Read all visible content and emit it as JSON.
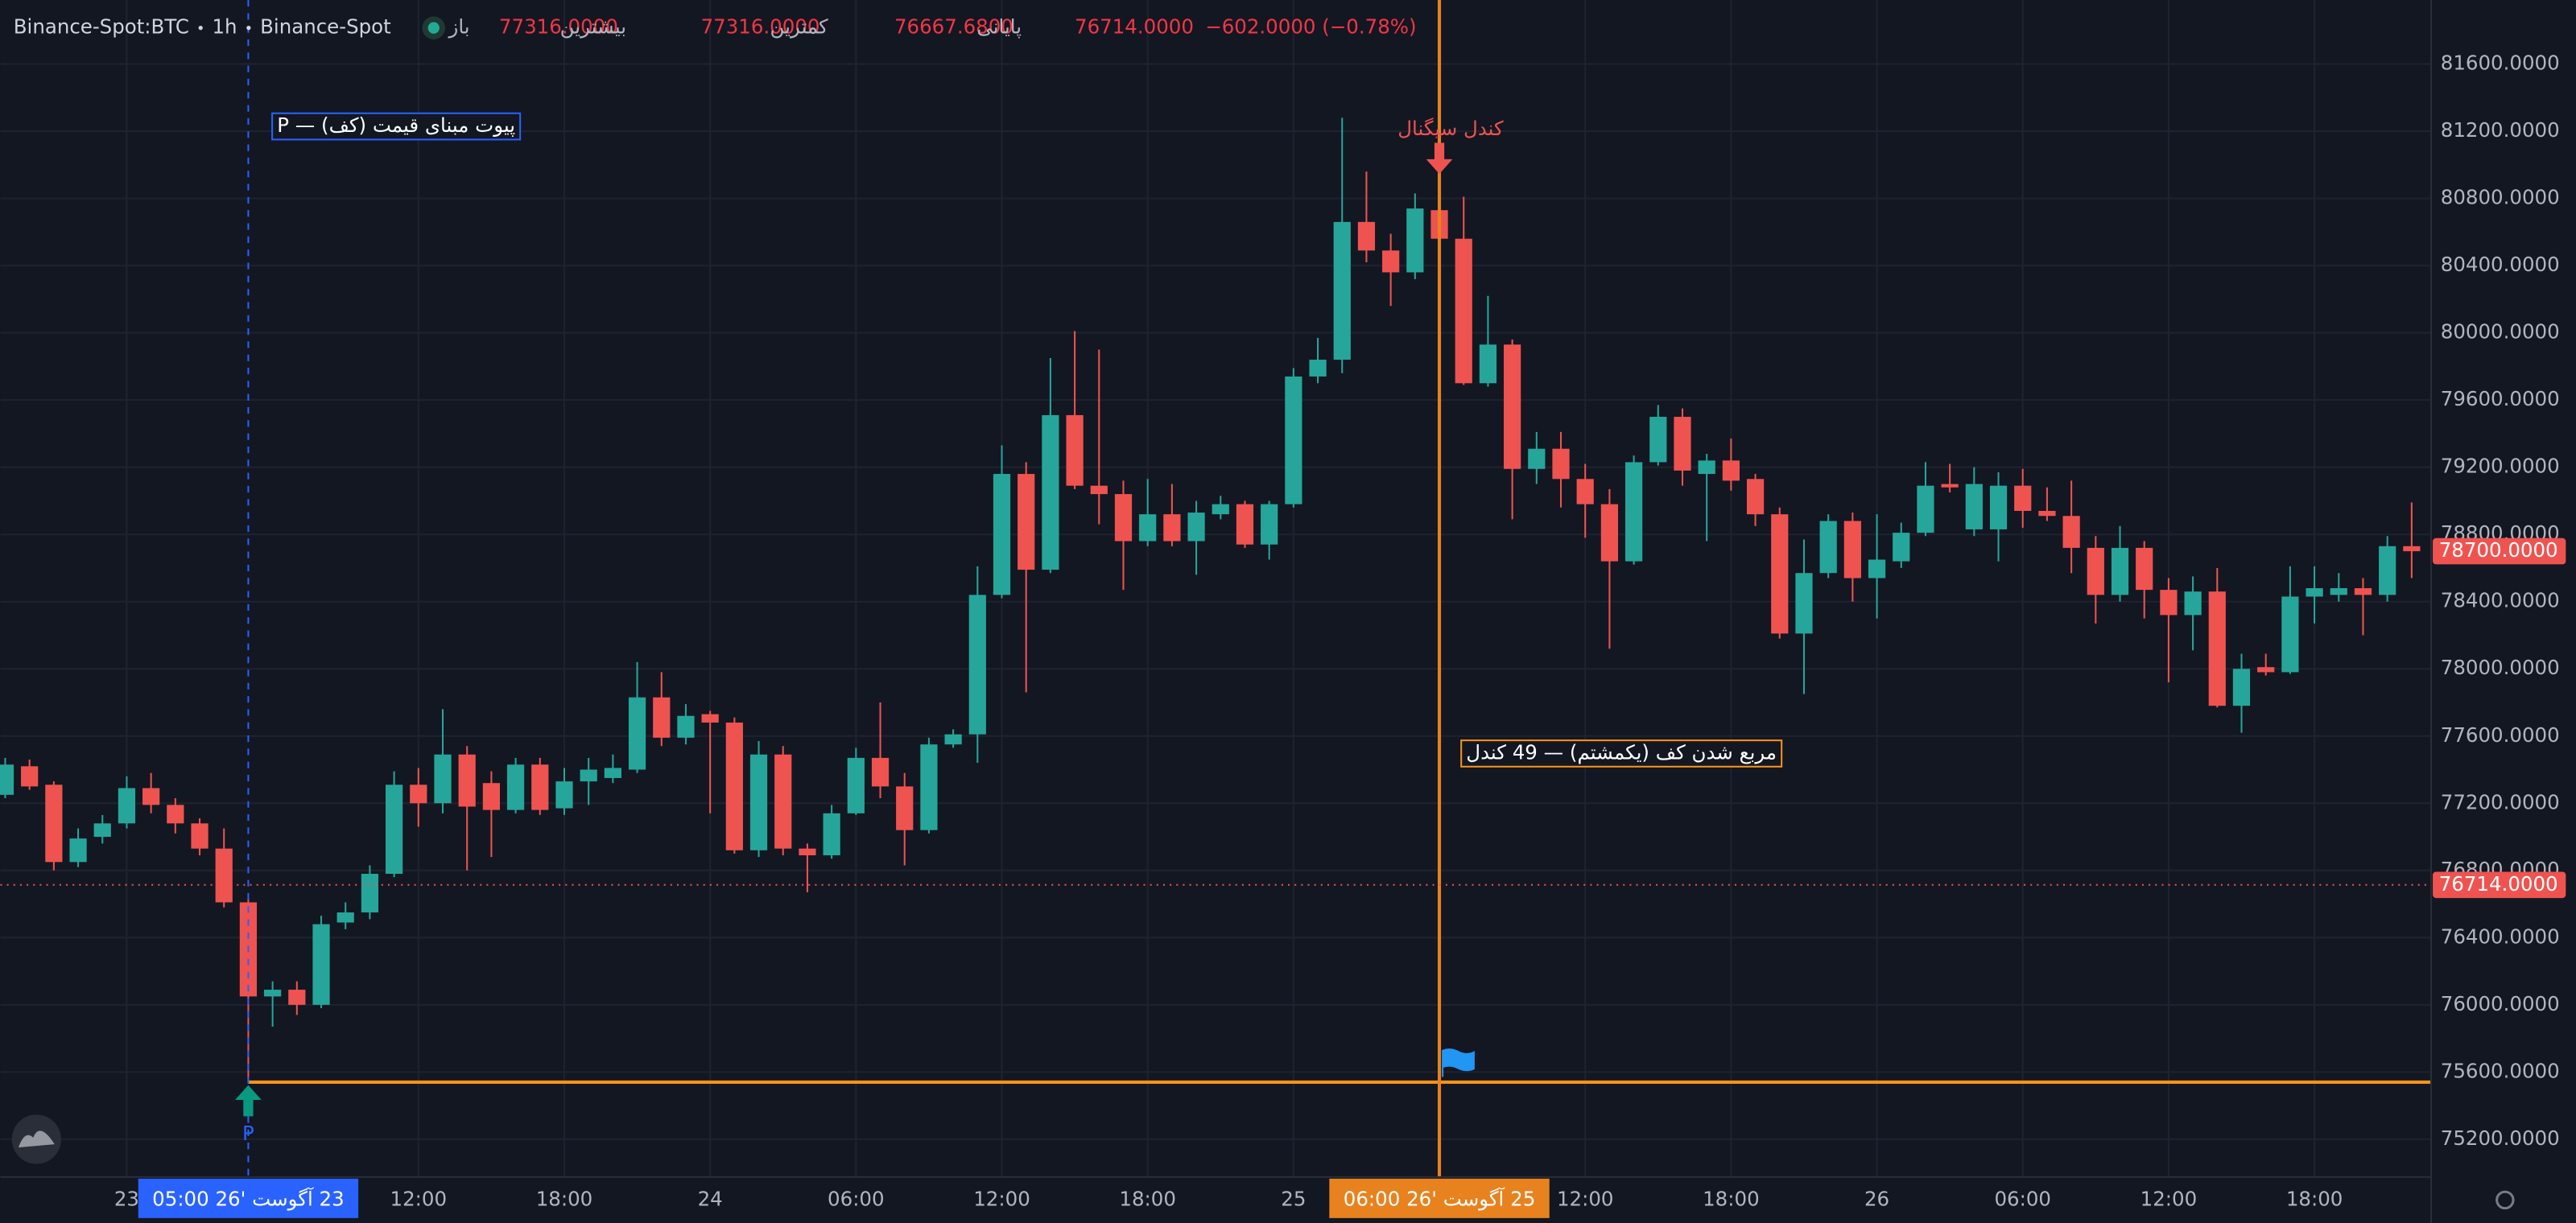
{
  "chart_data": {
    "type": "candlestick",
    "header": {
      "symbol": "Binance-Spot:BTC",
      "interval": "1h",
      "exchange": "Binance-Spot",
      "ohlc": [
        {
          "label": "باز",
          "value": "77316.0000"
        },
        {
          "label": "بیشترین",
          "value": "77316.0000"
        },
        {
          "label": "کمترین",
          "value": "76667.6800"
        },
        {
          "label": "پایانی",
          "value": "76714.0000"
        }
      ],
      "change": "−602.0000 (−0.78%)"
    },
    "categories": [
      null,
      null,
      null,
      null,
      null,
      "23",
      null,
      null,
      null,
      null,
      null,
      null,
      null,
      null,
      null,
      null,
      null,
      "12:00",
      null,
      null,
      null,
      null,
      null,
      "18:00",
      null,
      null,
      null,
      null,
      null,
      "24",
      null,
      null,
      null,
      null,
      null,
      "06:00",
      null,
      null,
      null,
      null,
      null,
      "12:00",
      null,
      null,
      null,
      null,
      null,
      "18:00",
      null,
      null,
      null,
      null,
      null,
      "25",
      null,
      null,
      null,
      null,
      null,
      null,
      null,
      null,
      null,
      null,
      null,
      "12:00",
      null,
      null,
      null,
      null,
      null,
      "18:00",
      null,
      null,
      null,
      null,
      null,
      "26",
      null,
      null,
      null,
      null,
      null,
      "06:00",
      null,
      null,
      null,
      null,
      null,
      "12:00",
      null,
      null,
      null,
      null,
      null,
      "18:00",
      null,
      null,
      null,
      null
    ],
    "open": [
      77250,
      77420,
      77310,
      76850,
      77000,
      77080,
      77290,
      77190,
      77080,
      76930,
      76610,
      76050,
      76090,
      76000,
      76490,
      76550,
      76780,
      77310,
      77200,
      77490,
      77320,
      77160,
      77430,
      77170,
      77330,
      77350,
      77400,
      77830,
      77590,
      77730,
      77680,
      76920,
      77490,
      76930,
      76890,
      77140,
      77470,
      77300,
      77040,
      77550,
      77610,
      78440,
      79160,
      78590,
      79510,
      79090,
      79040,
      78760,
      78920,
      78760,
      78920,
      78980,
      78740,
      78980,
      79740,
      79840,
      80660,
      80490,
      80360,
      80730,
      80560,
      79700,
      79930,
      79190,
      79310,
      79130,
      78980,
      78640,
      79230,
      79500,
      79160,
      79240,
      79130,
      78920,
      78210,
      78570,
      78880,
      78540,
      78640,
      78810,
      79100,
      78830,
      78830,
      79090,
      78940,
      78910,
      78720,
      78440,
      78720,
      78470,
      78320,
      78460,
      77780,
      78010,
      77980,
      78430,
      78440,
      78480,
      78440,
      78730
    ],
    "high": [
      77470,
      77460,
      77330,
      77050,
      77130,
      77360,
      77380,
      77230,
      77110,
      77050,
      76630,
      76140,
      76140,
      76530,
      76610,
      76830,
      77390,
      77410,
      77760,
      77540,
      77390,
      77470,
      77470,
      77410,
      77470,
      77490,
      78040,
      77980,
      77790,
      77750,
      77710,
      77570,
      77540,
      76960,
      77190,
      77530,
      77800,
      77380,
      77590,
      77640,
      78610,
      79330,
      79230,
      79850,
      80010,
      79900,
      79120,
      79130,
      79100,
      79000,
      79030,
      79000,
      79000,
      79790,
      79970,
      81280,
      80960,
      80590,
      80830,
      81000,
      80810,
      80220,
      79960,
      79410,
      79410,
      79220,
      79070,
      79270,
      79570,
      79550,
      79280,
      79370,
      79160,
      78960,
      78770,
      78920,
      78930,
      78920,
      78870,
      79230,
      79220,
      79200,
      79170,
      79190,
      79080,
      79120,
      78790,
      78850,
      78760,
      78540,
      78550,
      78600,
      78090,
      78090,
      78610,
      78610,
      78570,
      78540,
      78790,
      78990
    ],
    "low": [
      77230,
      77280,
      76800,
      76820,
      76960,
      77050,
      77140,
      77020,
      76890,
      76580,
      75540,
      75870,
      75940,
      75980,
      76450,
      76510,
      76760,
      77060,
      77140,
      76800,
      76880,
      77140,
      77130,
      77130,
      77190,
      77320,
      77380,
      77540,
      77550,
      77140,
      76900,
      76880,
      76890,
      76670,
      76870,
      77130,
      77230,
      76830,
      77020,
      77530,
      77440,
      78420,
      77860,
      78570,
      79070,
      78860,
      78470,
      78730,
      78730,
      78560,
      78890,
      78720,
      78650,
      78960,
      79700,
      79760,
      80420,
      80160,
      80320,
      80440,
      79690,
      79680,
      78890,
      79100,
      78960,
      78780,
      78120,
      78620,
      79210,
      79090,
      78760,
      79060,
      78850,
      78180,
      77850,
      78540,
      78400,
      78300,
      78600,
      78790,
      79050,
      78790,
      78640,
      78840,
      78880,
      78570,
      78270,
      78400,
      78300,
      77920,
      78110,
      77770,
      77620,
      77960,
      77970,
      78270,
      78400,
      78200,
      78400,
      78540
    ],
    "close": [
      77430,
      77300,
      76850,
      76990,
      77080,
      77290,
      77190,
      77080,
      76930,
      76610,
      76050,
      76090,
      76000,
      76480,
      76550,
      76780,
      77310,
      77200,
      77490,
      77180,
      77160,
      77430,
      77160,
      77330,
      77400,
      77410,
      77830,
      77590,
      77720,
      77680,
      76920,
      77490,
      76930,
      76890,
      77140,
      77470,
      77300,
      77040,
      77550,
      77610,
      78440,
      79160,
      78590,
      79510,
      79090,
      79040,
      78760,
      78920,
      78760,
      78930,
      78980,
      78740,
      78980,
      79740,
      79840,
      80660,
      80490,
      80360,
      80740,
      80560,
      79700,
      79930,
      79190,
      79310,
      79130,
      78980,
      78640,
      79230,
      79500,
      79180,
      79240,
      79120,
      78920,
      78210,
      78570,
      78880,
      78540,
      78650,
      78810,
      79090,
      79080,
      79100,
      79090,
      78940,
      78910,
      78720,
      78440,
      78720,
      78470,
      78320,
      78460,
      77780,
      78000,
      77980,
      78430,
      78480,
      78480,
      78440,
      78730,
      78700
    ],
    "up_color": "#26a69a",
    "down_color": "#ef5350",
    "ylim": [
      74975,
      81981
    ],
    "yticks": [
      {
        "value": 75200,
        "label": "75200.0000"
      },
      {
        "value": 75600,
        "label": "75600.0000"
      },
      {
        "value": 76000,
        "label": "76000.0000"
      },
      {
        "value": 76400,
        "label": "76400.0000"
      },
      {
        "value": 76800,
        "label": "76800.0000"
      },
      {
        "value": 77200,
        "label": "77200.0000"
      },
      {
        "value": 77600,
        "label": "77600.0000"
      },
      {
        "value": 78000,
        "label": "78000.0000"
      },
      {
        "value": 78400,
        "label": "78400.0000"
      },
      {
        "value": 78800,
        "label": "78800.0000"
      },
      {
        "value": 79200,
        "label": "79200.0000"
      },
      {
        "value": 79600,
        "label": "79600.0000"
      },
      {
        "value": 80000,
        "label": "80000.0000"
      },
      {
        "value": 80400,
        "label": "80400.0000"
      },
      {
        "value": 80800,
        "label": "80800.0000"
      },
      {
        "value": 81200,
        "label": "81200.0000"
      },
      {
        "value": 81600,
        "label": "81600.0000"
      }
    ],
    "grid": true,
    "price_labels": [
      {
        "value": 78700,
        "label": "78700.0000",
        "color": "#ef5350",
        "line": "none"
      },
      {
        "value": 76714,
        "label": "76714.0000",
        "color": "#ef5350",
        "line": "dotted"
      }
    ],
    "level": {
      "value": 75540,
      "color": "#f7931a"
    },
    "time_markers": [
      {
        "label": "23 آگوست '26 05:00",
        "color": "#2962ff"
      },
      {
        "label": "25 آگوست '26 06:00",
        "color": "#e8821e"
      }
    ],
    "annotations": [
      {
        "text": "پیوت مبنای قیمت (کف) — P",
        "color": "#2962ff",
        "boxed": true
      },
      {
        "text": "کندل سیگنال",
        "color": "#ef5350",
        "boxed": false
      },
      {
        "text": "مربع شدن کف (یکمشتم) — 49 کندل",
        "color": "#f7931a",
        "boxed": true
      },
      {
        "text": "P",
        "color": "#2962ff",
        "boxed": false
      }
    ]
  }
}
